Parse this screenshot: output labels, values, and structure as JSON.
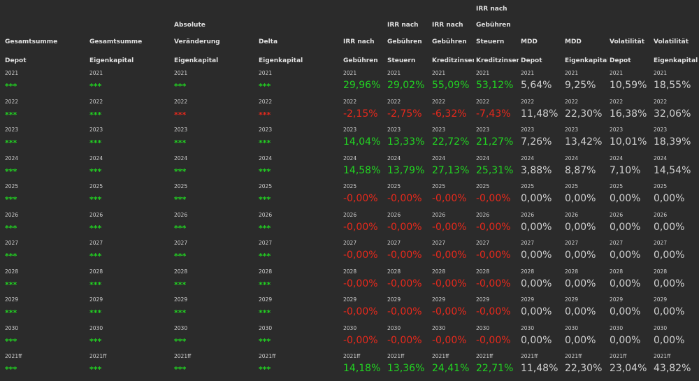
{
  "colors": {
    "background": "#2b2b2b",
    "positive": "#22d322",
    "negative": "#e8291c",
    "neutral": "#d0d0d0"
  },
  "headers": [
    {
      "lines": [
        "Gesamtsumme",
        "Depot"
      ]
    },
    {
      "lines": [
        "Gesamtsumme",
        "Eigenkapital"
      ]
    },
    {
      "lines": [
        "Absolute",
        "Veränderung",
        "Eigenkapital"
      ]
    },
    {
      "lines": [
        "Delta",
        "Eigenkapital"
      ]
    },
    {
      "lines": [
        "IRR nach",
        "Gebühren"
      ]
    },
    {
      "lines": [
        "IRR nach",
        "Gebühren",
        "Steuern"
      ]
    },
    {
      "lines": [
        "IRR nach",
        "Gebühren",
        "Kreditzinsen"
      ]
    },
    {
      "lines": [
        "IRR nach",
        "Gebühren",
        "Steuern",
        "Kreditzinsen"
      ]
    },
    {
      "lines": [
        "MDD",
        "Depot"
      ]
    },
    {
      "lines": [
        "MDD",
        "Eigenkapital"
      ]
    },
    {
      "lines": [
        "Volatilität",
        "Depot"
      ]
    },
    {
      "lines": [
        "Volatilität",
        "Eigenkapital"
      ]
    }
  ],
  "rows": [
    {
      "year": "2021",
      "values": [
        "***",
        "***",
        "***",
        "***",
        "29,96%",
        "29,02%",
        "55,09%",
        "53,12%",
        "5,64%",
        "9,25%",
        "10,59%",
        "18,55%"
      ],
      "colors": [
        "g",
        "g",
        "g",
        "g",
        "g",
        "g",
        "g",
        "g",
        "n",
        "n",
        "n",
        "n"
      ]
    },
    {
      "year": "2022",
      "values": [
        "***",
        "***",
        "***",
        "***",
        "-2,15%",
        "-2,75%",
        "-6,32%",
        "-7,43%",
        "11,48%",
        "22,30%",
        "16,38%",
        "32,06%"
      ],
      "colors": [
        "g",
        "g",
        "r",
        "r",
        "r",
        "r",
        "r",
        "r",
        "n",
        "n",
        "n",
        "n"
      ]
    },
    {
      "year": "2023",
      "values": [
        "***",
        "***",
        "***",
        "***",
        "14,04%",
        "13,33%",
        "22,72%",
        "21,27%",
        "7,26%",
        "13,42%",
        "10,01%",
        "18,39%"
      ],
      "colors": [
        "g",
        "g",
        "g",
        "g",
        "g",
        "g",
        "g",
        "g",
        "n",
        "n",
        "n",
        "n"
      ]
    },
    {
      "year": "2024",
      "values": [
        "***",
        "***",
        "***",
        "***",
        "14,58%",
        "13,79%",
        "27,13%",
        "25,31%",
        "3,88%",
        "8,87%",
        "7,10%",
        "14,54%"
      ],
      "colors": [
        "g",
        "g",
        "g",
        "g",
        "g",
        "g",
        "g",
        "g",
        "n",
        "n",
        "n",
        "n"
      ]
    },
    {
      "year": "2025",
      "values": [
        "***",
        "***",
        "***",
        "***",
        "-0,00%",
        "-0,00%",
        "-0,00%",
        "-0,00%",
        "0,00%",
        "0,00%",
        "0,00%",
        "0,00%"
      ],
      "colors": [
        "g",
        "g",
        "g",
        "g",
        "r",
        "r",
        "r",
        "r",
        "n",
        "n",
        "n",
        "n"
      ]
    },
    {
      "year": "2026",
      "values": [
        "***",
        "***",
        "***",
        "***",
        "-0,00%",
        "-0,00%",
        "-0,00%",
        "-0,00%",
        "0,00%",
        "0,00%",
        "0,00%",
        "0,00%"
      ],
      "colors": [
        "g",
        "g",
        "g",
        "g",
        "r",
        "r",
        "r",
        "r",
        "n",
        "n",
        "n",
        "n"
      ]
    },
    {
      "year": "2027",
      "values": [
        "***",
        "***",
        "***",
        "***",
        "-0,00%",
        "-0,00%",
        "-0,00%",
        "-0,00%",
        "0,00%",
        "0,00%",
        "0,00%",
        "0,00%"
      ],
      "colors": [
        "g",
        "g",
        "g",
        "g",
        "r",
        "r",
        "r",
        "r",
        "n",
        "n",
        "n",
        "n"
      ]
    },
    {
      "year": "2028",
      "values": [
        "***",
        "***",
        "***",
        "***",
        "-0,00%",
        "-0,00%",
        "-0,00%",
        "-0,00%",
        "0,00%",
        "0,00%",
        "0,00%",
        "0,00%"
      ],
      "colors": [
        "g",
        "g",
        "g",
        "g",
        "r",
        "r",
        "r",
        "r",
        "n",
        "n",
        "n",
        "n"
      ]
    },
    {
      "year": "2029",
      "values": [
        "***",
        "***",
        "***",
        "***",
        "-0,00%",
        "-0,00%",
        "-0,00%",
        "-0,00%",
        "0,00%",
        "0,00%",
        "0,00%",
        "0,00%"
      ],
      "colors": [
        "g",
        "g",
        "g",
        "g",
        "r",
        "r",
        "r",
        "r",
        "n",
        "n",
        "n",
        "n"
      ]
    },
    {
      "year": "2030",
      "values": [
        "***",
        "***",
        "***",
        "***",
        "-0,00%",
        "-0,00%",
        "-0,00%",
        "-0,00%",
        "0,00%",
        "0,00%",
        "0,00%",
        "0,00%"
      ],
      "colors": [
        "g",
        "g",
        "g",
        "g",
        "r",
        "r",
        "r",
        "r",
        "n",
        "n",
        "n",
        "n"
      ]
    },
    {
      "year": "2021ff",
      "values": [
        "***",
        "***",
        "***",
        "***",
        "14,18%",
        "13,36%",
        "24,41%",
        "22,71%",
        "11,48%",
        "22,30%",
        "23,04%",
        "43,82%"
      ],
      "colors": [
        "g",
        "g",
        "g",
        "g",
        "g",
        "g",
        "g",
        "g",
        "n",
        "n",
        "n",
        "n"
      ]
    }
  ]
}
